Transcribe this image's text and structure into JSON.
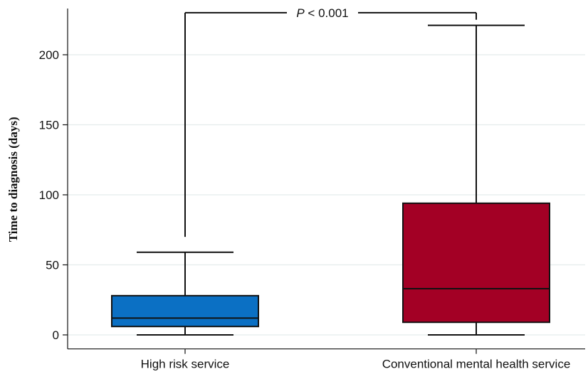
{
  "chart_data": {
    "type": "box",
    "ylabel": "Time to diagnosis (days)",
    "xlabel": "",
    "ylim": [
      -10,
      232
    ],
    "yticks": [
      0,
      50,
      100,
      150,
      200
    ],
    "grid": true,
    "categories": [
      "High risk service",
      "Conventional mental health service"
    ],
    "boxes": [
      {
        "category": "High risk service",
        "min": 0,
        "q1": 6,
        "median": 12,
        "q3": 28,
        "max": 59,
        "color": "#0b70c4"
      },
      {
        "category": "Conventional mental health service",
        "min": 0,
        "q1": 9,
        "median": 33,
        "q3": 94,
        "max": 221,
        "color": "#a30025"
      }
    ],
    "annotation": {
      "prefix": "P",
      "text": " < 0.001",
      "bracket_top": 230,
      "left_end": 70,
      "right_end": 225
    }
  }
}
